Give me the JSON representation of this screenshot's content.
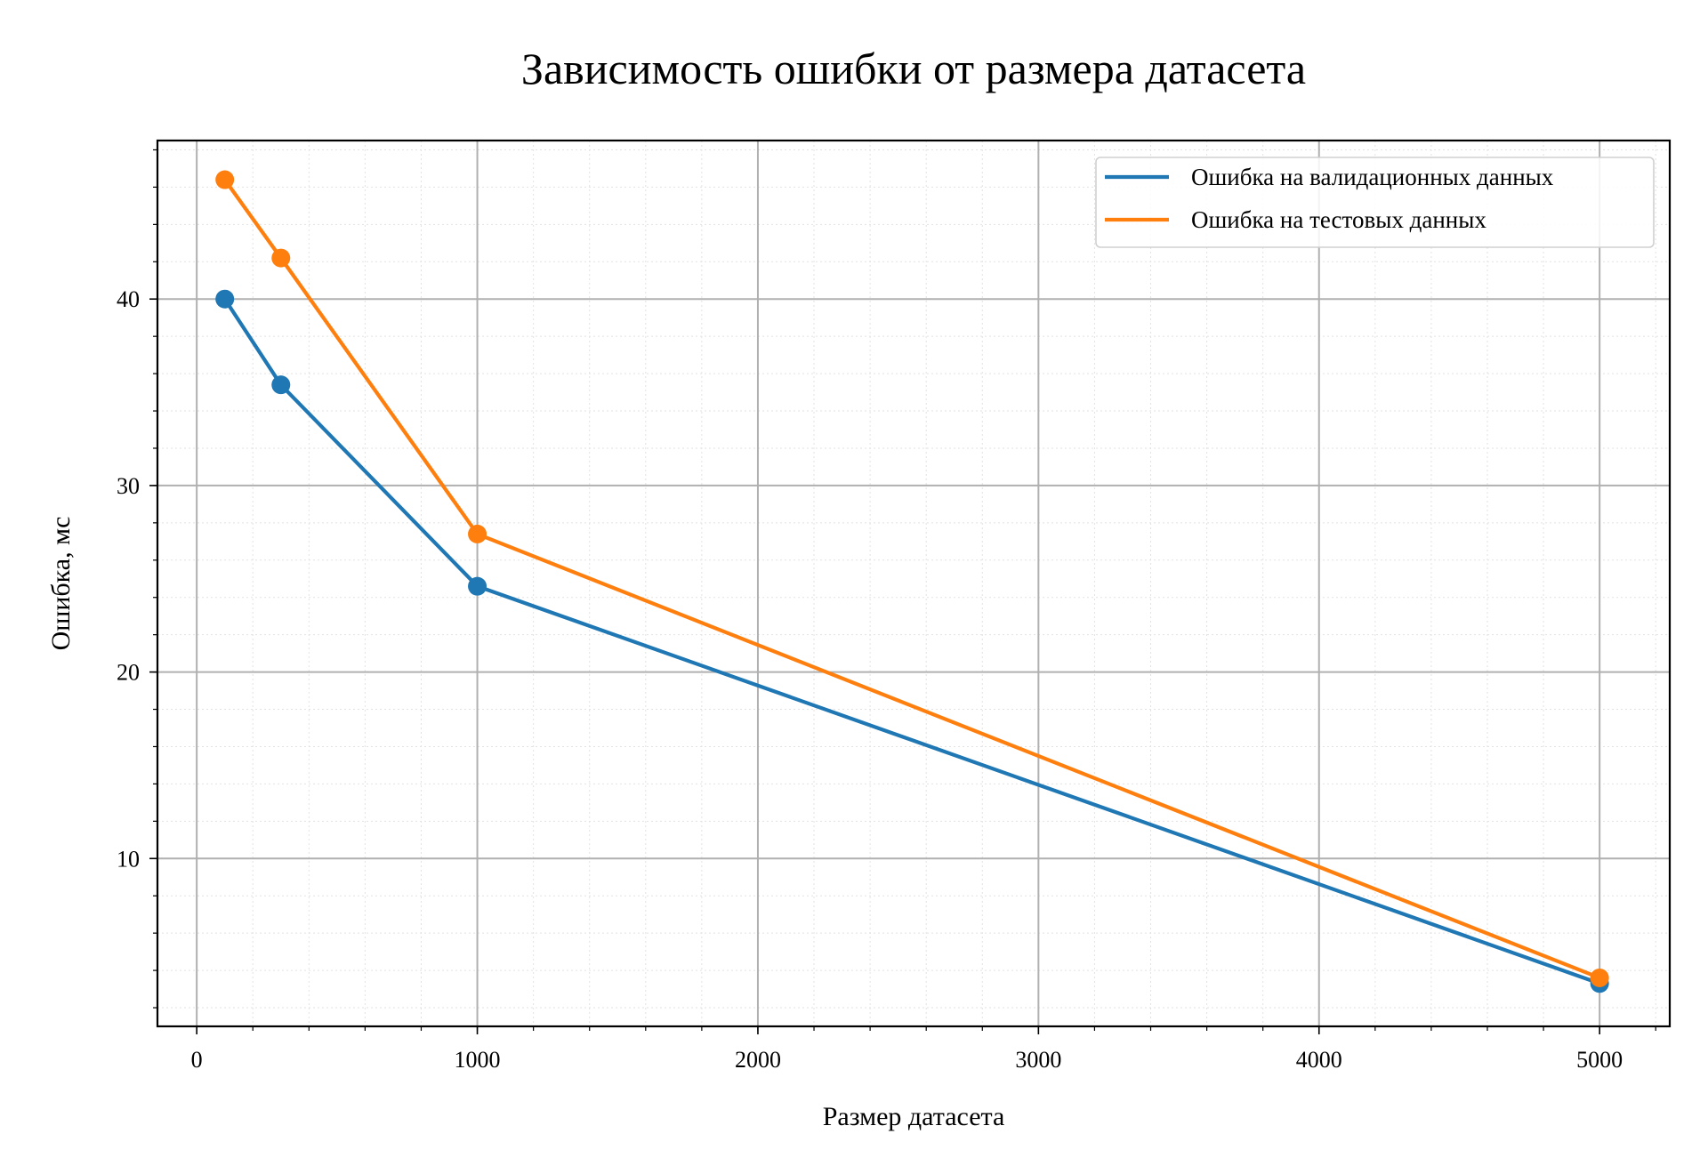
{
  "chart_data": {
    "type": "line",
    "title": "Зависимость ошибки от размера датасета",
    "xlabel": "Размер датасета",
    "ylabel": "Ошибка, мс",
    "x": [
      100,
      300,
      1000,
      5000
    ],
    "xlim": [
      -140,
      5250
    ],
    "ylim": [
      1,
      48.5
    ],
    "xticks": [
      0,
      1000,
      2000,
      3000,
      4000,
      5000
    ],
    "yticks": [
      10,
      20,
      30,
      40
    ],
    "x_minor_step": 200,
    "y_minor_step": 2,
    "grid": true,
    "minor_grid": true,
    "legend_position": "top-right",
    "series": [
      {
        "name": "Ошибка на валидационных данных",
        "color": "#1f77b4",
        "values": [
          40.0,
          35.4,
          24.6,
          3.3
        ]
      },
      {
        "name": "Ошибка на тестовых данных",
        "color": "#ff7f0e",
        "values": [
          46.4,
          42.2,
          27.4,
          3.6
        ]
      }
    ]
  }
}
